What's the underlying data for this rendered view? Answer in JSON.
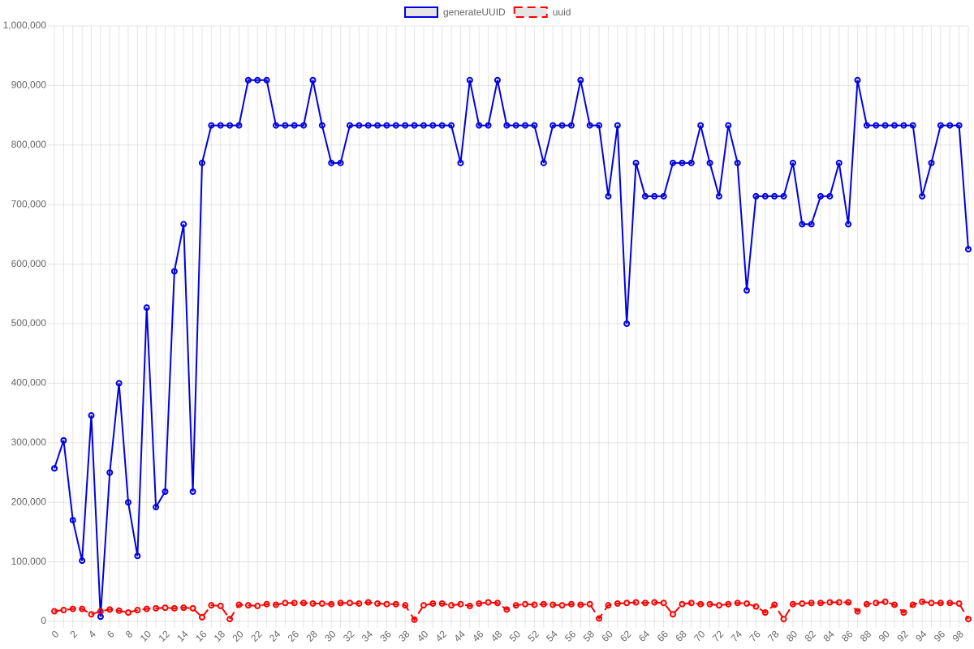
{
  "chart_data": {
    "type": "line",
    "categories": [
      "0",
      null,
      "2",
      null,
      "4",
      null,
      "6",
      null,
      "8",
      null,
      "10",
      null,
      "12",
      null,
      "14",
      null,
      "16",
      null,
      "18",
      null,
      "20",
      null,
      "22",
      null,
      "24",
      null,
      "26",
      null,
      "28",
      null,
      "30",
      null,
      "32",
      null,
      "34",
      null,
      "36",
      null,
      "38",
      null,
      "40",
      null,
      "42",
      null,
      "44",
      null,
      "46",
      null,
      "48",
      null,
      "50",
      null,
      "52",
      null,
      "54",
      null,
      "56",
      null,
      "58",
      null,
      "60",
      null,
      "62",
      null,
      "64",
      null,
      "66",
      null,
      "68",
      null,
      "70",
      null,
      "72",
      null,
      "74",
      null,
      "76",
      null,
      "78",
      null,
      "80",
      null,
      "82",
      null,
      "84",
      null,
      "86",
      null,
      "88",
      null,
      "90",
      null,
      "92",
      null,
      "94",
      null,
      "96",
      null,
      "98",
      null
    ],
    "series": [
      {
        "name": "generateUUID",
        "color": "#0000e6",
        "dashed": false,
        "values": [
          257000,
          304000,
          170000,
          102000,
          346000,
          8000,
          250000,
          400000,
          200000,
          110000,
          527000,
          192000,
          218000,
          588000,
          667000,
          218000,
          770000,
          833000,
          833000,
          833000,
          833000,
          909000,
          909000,
          909000,
          833000,
          833000,
          833000,
          833000,
          909000,
          833000,
          770000,
          770000,
          833000,
          833000,
          833000,
          833000,
          833000,
          833000,
          833000,
          833000,
          833000,
          833000,
          833000,
          833000,
          770000,
          909000,
          833000,
          833000,
          909000,
          833000,
          833000,
          833000,
          833000,
          770000,
          833000,
          833000,
          833000,
          909000,
          833000,
          833000,
          714000,
          833000,
          500000,
          770000,
          714000,
          714000,
          714000,
          770000,
          770000,
          770000,
          833000,
          770000,
          714000,
          833000,
          770000,
          556000,
          714000,
          714000,
          714000,
          714000,
          770000,
          667000,
          667000,
          714000,
          714000,
          770000,
          667000,
          909000,
          833000,
          833000,
          833000,
          833000,
          833000,
          833000,
          714000,
          770000,
          833000,
          833000,
          833000,
          625000
        ]
      },
      {
        "name": "uuid",
        "color": "#ff0000",
        "dashed": true,
        "values": [
          17000,
          19000,
          21000,
          21000,
          12000,
          17000,
          20000,
          18000,
          15000,
          19000,
          21000,
          22000,
          23000,
          22000,
          23000,
          22000,
          7000,
          27000,
          26000,
          4000,
          28000,
          27000,
          26000,
          29000,
          28000,
          31000,
          31000,
          31000,
          30000,
          30000,
          29000,
          31000,
          31000,
          30000,
          32000,
          30000,
          29000,
          29000,
          27000,
          3000,
          27000,
          30000,
          30000,
          27000,
          29000,
          26000,
          30000,
          32000,
          31000,
          20000,
          27000,
          29000,
          28000,
          29000,
          28000,
          27000,
          29000,
          28000,
          29000,
          5000,
          27000,
          30000,
          31000,
          32000,
          31000,
          32000,
          31000,
          12000,
          29000,
          31000,
          29000,
          29000,
          27000,
          29000,
          31000,
          30000,
          25000,
          15000,
          28000,
          4000,
          29000,
          30000,
          31000,
          31000,
          32000,
          32000,
          32000,
          17000,
          29000,
          31000,
          33000,
          28000,
          15000,
          28000,
          33000,
          31000,
          31000,
          31000,
          30000,
          4000
        ]
      }
    ],
    "ylim": [
      0,
      1000000
    ],
    "yticks": [
      0,
      {
        "value": 100000,
        "label": "100,000"
      },
      {
        "value": 200000,
        "label": "200,000"
      },
      {
        "value": 300000,
        "label": "300,000"
      },
      {
        "value": 400000,
        "label": "400,000"
      },
      {
        "value": 500000,
        "label": "500,000"
      },
      {
        "value": 600000,
        "label": "600,000"
      },
      {
        "value": 700000,
        "label": "700,000"
      },
      {
        "value": 800000,
        "label": "800,000"
      },
      {
        "value": 900000,
        "label": "900,000"
      },
      {
        "value": 1000000,
        "label": "1,000,000"
      }
    ],
    "grid": true,
    "legend": "top"
  }
}
